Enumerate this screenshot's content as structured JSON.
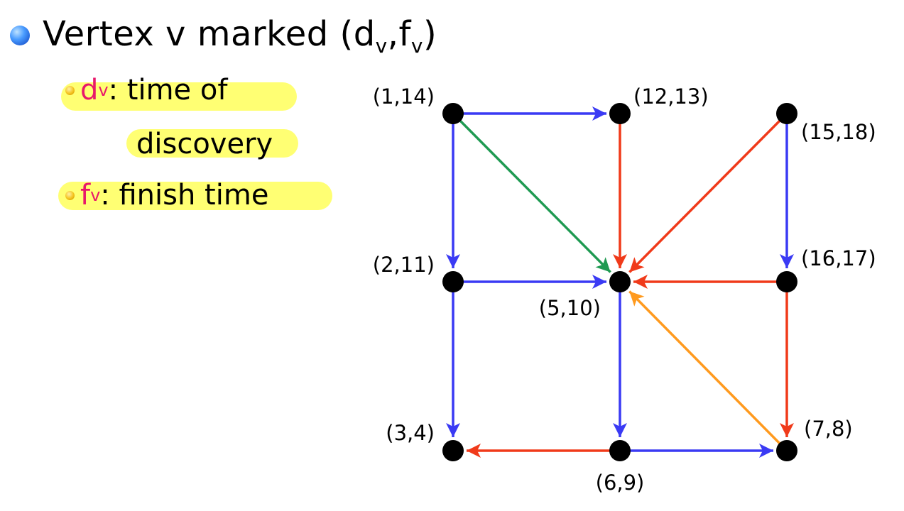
{
  "title": {
    "prefix": "Vertex v marked (d",
    "sub1": "v",
    "comma": ",f",
    "sub2": "v",
    "suffix": ")"
  },
  "bullets": [
    {
      "symbol": "d",
      "sub": "v",
      "text": ": time of",
      "continuation": "discovery"
    },
    {
      "symbol": "f",
      "sub": "v",
      "text": ": finish time"
    }
  ],
  "colors": {
    "tree_edge": "#3a3af4",
    "back_edge": "#f03a1a",
    "forward_edge": "#1f9a52",
    "cross_edge": "#ff9a1e",
    "symbol": "#e8186a",
    "highlight": "#ffff73"
  },
  "graph": {
    "vertices": [
      {
        "id": "a",
        "label": "(1,14)"
      },
      {
        "id": "b",
        "label": "(12,13)"
      },
      {
        "id": "c",
        "label": "(15,18)"
      },
      {
        "id": "d",
        "label": "(2,11)"
      },
      {
        "id": "e",
        "label": "(5,10)"
      },
      {
        "id": "f",
        "label": "(16,17)"
      },
      {
        "id": "g",
        "label": "(3,4)"
      },
      {
        "id": "h",
        "label": "(6,9)"
      },
      {
        "id": "i",
        "label": "(7,8)"
      }
    ],
    "edges": [
      {
        "from": "a",
        "to": "b",
        "type": "tree"
      },
      {
        "from": "a",
        "to": "d",
        "type": "tree"
      },
      {
        "from": "a",
        "to": "e",
        "type": "forward"
      },
      {
        "from": "b",
        "to": "e",
        "type": "back"
      },
      {
        "from": "c",
        "to": "e",
        "type": "back"
      },
      {
        "from": "c",
        "to": "f",
        "type": "tree"
      },
      {
        "from": "d",
        "to": "e",
        "type": "tree"
      },
      {
        "from": "d",
        "to": "g",
        "type": "tree"
      },
      {
        "from": "f",
        "to": "e",
        "type": "back"
      },
      {
        "from": "f",
        "to": "i",
        "type": "back"
      },
      {
        "from": "e",
        "to": "h",
        "type": "tree"
      },
      {
        "from": "h",
        "to": "g",
        "type": "back"
      },
      {
        "from": "h",
        "to": "i",
        "type": "tree"
      },
      {
        "from": "i",
        "to": "e",
        "type": "cross"
      }
    ]
  }
}
